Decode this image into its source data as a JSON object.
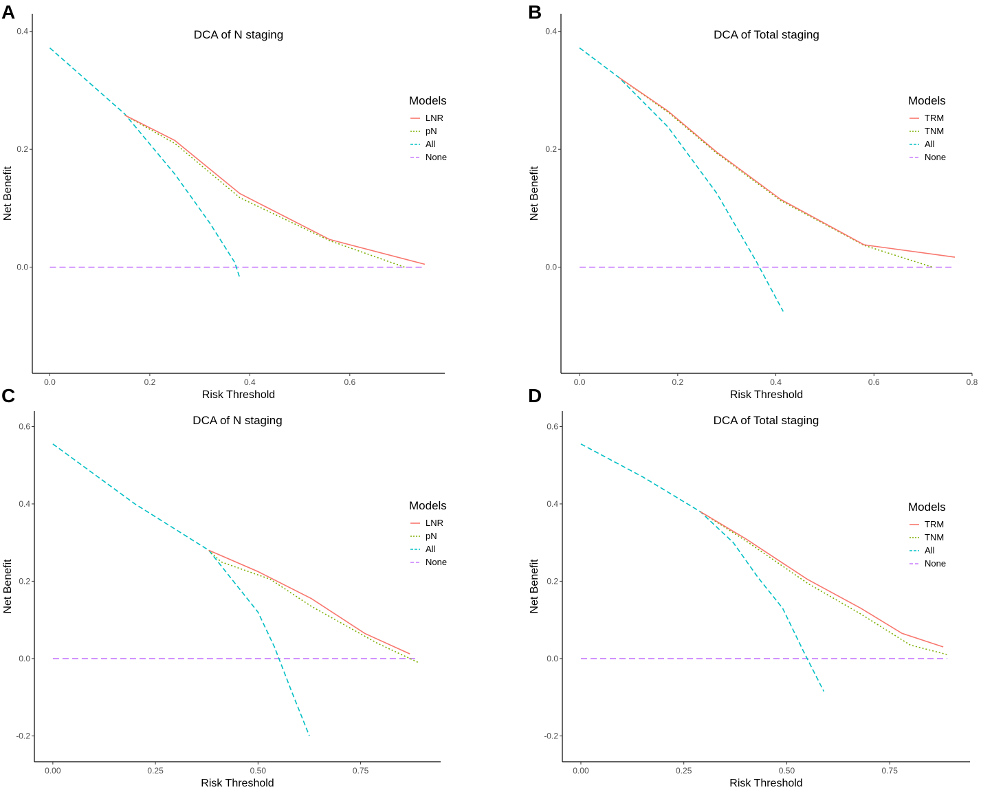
{
  "colors": {
    "series1": "#F8766D",
    "series2": "#7CAE00",
    "all": "#00BFC4",
    "none": "#C77CFF"
  },
  "chart_data": [
    {
      "panel": "A",
      "type": "line",
      "title": "DCA of N staging",
      "xlabel": "Risk Threshold",
      "ylabel": "Net Benefit",
      "xlim": [
        -0.035,
        0.79
      ],
      "ylim": [
        -0.18,
        0.43
      ],
      "xticks": [
        0.0,
        0.2,
        0.4,
        0.6
      ],
      "xtick_labels": [
        "0.0",
        "0.2",
        "0.4",
        "0.6"
      ],
      "yticks": [
        0.0,
        0.2,
        0.4
      ],
      "ytick_labels": [
        "0.0",
        "0.2",
        "0.4"
      ],
      "legend_title": "Models",
      "legend_position": "right",
      "series": [
        {
          "name": "LNR",
          "color": "#F8766D",
          "dash": "solid",
          "x": [
            0.15,
            0.25,
            0.38,
            0.56,
            0.75
          ],
          "y": [
            0.258,
            0.215,
            0.125,
            0.047,
            0.005
          ]
        },
        {
          "name": "pN",
          "color": "#7CAE00",
          "dash": "dotted",
          "x": [
            0.15,
            0.25,
            0.38,
            0.56,
            0.71
          ],
          "y": [
            0.258,
            0.21,
            0.118,
            0.045,
            0.0
          ]
        },
        {
          "name": "All",
          "color": "#00BFC4",
          "dash": "dashed",
          "x": [
            0.0,
            0.15,
            0.25,
            0.32,
            0.37,
            0.38
          ],
          "y": [
            0.372,
            0.26,
            0.158,
            0.075,
            0.008,
            -0.018
          ]
        },
        {
          "name": "None",
          "color": "#C77CFF",
          "dash": "longdash",
          "x": [
            0.0,
            0.75
          ],
          "y": [
            0.0,
            0.0
          ]
        }
      ]
    },
    {
      "panel": "B",
      "type": "line",
      "title": "DCA of Total staging",
      "xlabel": "Risk Threshold",
      "ylabel": "Net Benefit",
      "xlim": [
        -0.038,
        0.8
      ],
      "ylim": [
        -0.18,
        0.43
      ],
      "xticks": [
        0.0,
        0.2,
        0.4,
        0.6,
        0.8
      ],
      "xtick_labels": [
        "0.0",
        "0.2",
        "0.4",
        "0.6",
        "0.8"
      ],
      "yticks": [
        0.0,
        0.2,
        0.4
      ],
      "ytick_labels": [
        "0.0",
        "0.2",
        "0.4"
      ],
      "legend_title": "Models",
      "legend_position": "right",
      "series": [
        {
          "name": "TRM",
          "color": "#F8766D",
          "dash": "solid",
          "x": [
            0.08,
            0.18,
            0.28,
            0.41,
            0.58,
            0.765
          ],
          "y": [
            0.322,
            0.265,
            0.195,
            0.115,
            0.038,
            0.017
          ]
        },
        {
          "name": "TNM",
          "color": "#7CAE00",
          "dash": "dotted",
          "x": [
            0.08,
            0.18,
            0.28,
            0.41,
            0.58,
            0.72
          ],
          "y": [
            0.322,
            0.263,
            0.193,
            0.113,
            0.037,
            0.0
          ]
        },
        {
          "name": "All",
          "color": "#00BFC4",
          "dash": "dashed",
          "x": [
            0.0,
            0.08,
            0.18,
            0.28,
            0.36,
            0.415
          ],
          "y": [
            0.372,
            0.322,
            0.238,
            0.125,
            0.01,
            -0.075
          ]
        },
        {
          "name": "None",
          "color": "#C77CFF",
          "dash": "longdash",
          "x": [
            0.0,
            0.765
          ],
          "y": [
            0.0,
            0.0
          ]
        }
      ]
    },
    {
      "panel": "C",
      "type": "line",
      "title": "DCA of N staging",
      "xlabel": "Risk Threshold",
      "ylabel": "Net Benefit",
      "xlim": [
        -0.045,
        0.945
      ],
      "ylim": [
        -0.267,
        0.64
      ],
      "xticks": [
        0.0,
        0.25,
        0.5,
        0.75
      ],
      "xtick_labels": [
        "0.00",
        "0.25",
        "0.50",
        "0.75"
      ],
      "yticks": [
        -0.2,
        0.0,
        0.2,
        0.4,
        0.6
      ],
      "ytick_labels": [
        "-0.2",
        "0.0",
        "0.2",
        "0.4",
        "0.6"
      ],
      "legend_title": "Models",
      "legend_position": "right",
      "series": [
        {
          "name": "LNR",
          "color": "#F8766D",
          "dash": "solid",
          "x": [
            0.38,
            0.5,
            0.63,
            0.76,
            0.87
          ],
          "y": [
            0.28,
            0.225,
            0.155,
            0.065,
            0.012
          ]
        },
        {
          "name": "pN",
          "color": "#7CAE00",
          "dash": "dotted",
          "x": [
            0.38,
            0.41,
            0.53,
            0.63,
            0.79,
            0.89
          ],
          "y": [
            0.28,
            0.25,
            0.205,
            0.135,
            0.04,
            -0.01
          ]
        },
        {
          "name": "All",
          "color": "#00BFC4",
          "dash": "dashed",
          "x": [
            0.0,
            0.2,
            0.38,
            0.5,
            0.54,
            0.58,
            0.625
          ],
          "y": [
            0.555,
            0.4,
            0.28,
            0.12,
            0.03,
            -0.08,
            -0.2
          ]
        },
        {
          "name": "None",
          "color": "#C77CFF",
          "dash": "longdash",
          "x": [
            0.0,
            0.89
          ],
          "y": [
            0.0,
            0.0
          ]
        }
      ]
    },
    {
      "panel": "D",
      "type": "line",
      "title": "DCA of Total staging",
      "xlabel": "Risk Threshold",
      "ylabel": "Net Benefit",
      "xlim": [
        -0.045,
        0.945
      ],
      "ylim": [
        -0.267,
        0.64
      ],
      "xticks": [
        0.0,
        0.25,
        0.5,
        0.75
      ],
      "xtick_labels": [
        "0.00",
        "0.25",
        "0.50",
        "0.75"
      ],
      "yticks": [
        -0.2,
        0.0,
        0.2,
        0.4,
        0.6
      ],
      "ytick_labels": [
        "-0.2",
        "0.0",
        "0.2",
        "0.4",
        "0.6"
      ],
      "legend_title": "Models",
      "legend_position": "right",
      "series": [
        {
          "name": "TRM",
          "color": "#F8766D",
          "dash": "solid",
          "x": [
            0.29,
            0.4,
            0.55,
            0.68,
            0.78,
            0.88
          ],
          "y": [
            0.38,
            0.31,
            0.205,
            0.13,
            0.065,
            0.03
          ]
        },
        {
          "name": "TNM",
          "color": "#7CAE00",
          "dash": "dotted",
          "x": [
            0.29,
            0.4,
            0.55,
            0.68,
            0.8,
            0.89
          ],
          "y": [
            0.38,
            0.305,
            0.195,
            0.115,
            0.035,
            0.01
          ]
        },
        {
          "name": "All",
          "color": "#00BFC4",
          "dash": "dashed",
          "x": [
            0.0,
            0.15,
            0.29,
            0.37,
            0.43,
            0.49,
            0.54,
            0.59
          ],
          "y": [
            0.555,
            0.47,
            0.38,
            0.3,
            0.21,
            0.13,
            0.02,
            -0.085
          ]
        },
        {
          "name": "None",
          "color": "#C77CFF",
          "dash": "longdash",
          "x": [
            0.0,
            0.89
          ],
          "y": [
            0.0,
            0.0
          ]
        }
      ]
    }
  ]
}
